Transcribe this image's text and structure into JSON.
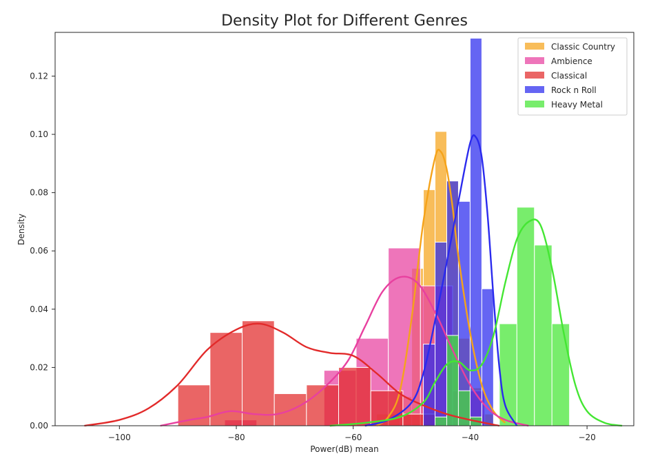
{
  "chart_data": {
    "type": "histogram",
    "title": "Density Plot for Different Genres",
    "xlabel": "Power(dB) mean",
    "ylabel": "Density",
    "xlim": [
      -111,
      -12
    ],
    "ylim": [
      0,
      0.135
    ],
    "xticks": [
      -100,
      -80,
      -60,
      -40,
      -20
    ],
    "xtick_labels": [
      "−100",
      "−80",
      "−60",
      "−40",
      "−20"
    ],
    "yticks": [
      0.0,
      0.02,
      0.04,
      0.06,
      0.08,
      0.1,
      0.12
    ],
    "ytick_labels": [
      "0.00",
      "0.02",
      "0.04",
      "0.06",
      "0.08",
      "0.10",
      "0.12"
    ],
    "grid": false,
    "legend_position": "top-right",
    "series": [
      {
        "name": "Classic Country",
        "color": "#f5a31a",
        "bins": [
          {
            "x0": -56,
            "x1": -54,
            "density": 0.004
          },
          {
            "x0": -54,
            "x1": -52,
            "density": 0.004
          },
          {
            "x0": -52,
            "x1": -50,
            "density": 0.01
          },
          {
            "x0": -50,
            "x1": -48,
            "density": 0.054
          },
          {
            "x0": -48,
            "x1": -46,
            "density": 0.081
          },
          {
            "x0": -46,
            "x1": -44,
            "density": 0.101
          },
          {
            "x0": -44,
            "x1": -42,
            "density": 0.084
          },
          {
            "x0": -42,
            "x1": -40,
            "density": 0.03
          },
          {
            "x0": -40,
            "x1": -38,
            "density": 0.013
          },
          {
            "x0": -38,
            "x1": -36,
            "density": 0.004
          }
        ],
        "kde": [
          [
            -56,
            0.0
          ],
          [
            -54,
            0.003
          ],
          [
            -52,
            0.012
          ],
          [
            -50,
            0.037
          ],
          [
            -48,
            0.07
          ],
          [
            -46,
            0.092
          ],
          [
            -45,
            0.094
          ],
          [
            -44,
            0.088
          ],
          [
            -43,
            0.075
          ],
          [
            -42,
            0.058
          ],
          [
            -40,
            0.032
          ],
          [
            -38,
            0.014
          ],
          [
            -36,
            0.005
          ],
          [
            -34,
            0.001
          ]
        ]
      },
      {
        "name": "Ambience",
        "color": "#e8409f",
        "bins": [
          {
            "x0": -82,
            "x1": -76.5,
            "density": 0.002
          },
          {
            "x0": -65,
            "x1": -59.5,
            "density": 0.019
          },
          {
            "x0": -59.5,
            "x1": -54,
            "density": 0.03
          },
          {
            "x0": -54,
            "x1": -48.5,
            "density": 0.061
          },
          {
            "x0": -48.5,
            "x1": -43,
            "density": 0.048
          },
          {
            "x0": -43,
            "x1": -37.5,
            "density": 0.012
          }
        ],
        "kde": [
          [
            -93,
            0.0
          ],
          [
            -88,
            0.002
          ],
          [
            -85,
            0.003
          ],
          [
            -81,
            0.005
          ],
          [
            -77,
            0.004
          ],
          [
            -73,
            0.004
          ],
          [
            -69,
            0.007
          ],
          [
            -65,
            0.013
          ],
          [
            -61,
            0.022
          ],
          [
            -58,
            0.034
          ],
          [
            -55,
            0.046
          ],
          [
            -52,
            0.051
          ],
          [
            -49,
            0.049
          ],
          [
            -46,
            0.039
          ],
          [
            -43,
            0.026
          ],
          [
            -40,
            0.014
          ],
          [
            -37,
            0.006
          ],
          [
            -34,
            0.002
          ],
          [
            -30,
            0.0
          ]
        ]
      },
      {
        "name": "Classical",
        "color": "#e22a2a",
        "bins": [
          {
            "x0": -90,
            "x1": -84.5,
            "density": 0.014
          },
          {
            "x0": -84.5,
            "x1": -79,
            "density": 0.032
          },
          {
            "x0": -79,
            "x1": -73.5,
            "density": 0.036
          },
          {
            "x0": -73.5,
            "x1": -68,
            "density": 0.011
          },
          {
            "x0": -68,
            "x1": -62.5,
            "density": 0.014
          },
          {
            "x0": -62.5,
            "x1": -57,
            "density": 0.02
          },
          {
            "x0": -57,
            "x1": -51.5,
            "density": 0.012
          },
          {
            "x0": -51.5,
            "x1": -46,
            "density": 0.004
          }
        ],
        "kde": [
          [
            -106,
            0.0
          ],
          [
            -100,
            0.002
          ],
          [
            -95,
            0.006
          ],
          [
            -90,
            0.014
          ],
          [
            -85,
            0.026
          ],
          [
            -80,
            0.033
          ],
          [
            -76,
            0.035
          ],
          [
            -72,
            0.032
          ],
          [
            -68,
            0.027
          ],
          [
            -64,
            0.025
          ],
          [
            -60,
            0.024
          ],
          [
            -56,
            0.018
          ],
          [
            -52,
            0.011
          ],
          [
            -48,
            0.007
          ],
          [
            -44,
            0.004
          ],
          [
            -40,
            0.002
          ],
          [
            -35,
            0.0
          ]
        ]
      },
      {
        "name": "Rock n Roll",
        "color": "#2a2aee",
        "bins": [
          {
            "x0": -48,
            "x1": -46,
            "density": 0.028
          },
          {
            "x0": -46,
            "x1": -44,
            "density": 0.063
          },
          {
            "x0": -44,
            "x1": -42,
            "density": 0.084
          },
          {
            "x0": -42,
            "x1": -40,
            "density": 0.077
          },
          {
            "x0": -40,
            "x1": -38,
            "density": 0.133
          },
          {
            "x0": -38,
            "x1": -36,
            "density": 0.047
          }
        ],
        "kde": [
          [
            -58,
            0.0
          ],
          [
            -54,
            0.002
          ],
          [
            -50,
            0.008
          ],
          [
            -48,
            0.018
          ],
          [
            -46,
            0.036
          ],
          [
            -44,
            0.056
          ],
          [
            -42,
            0.077
          ],
          [
            -40,
            0.097
          ],
          [
            -39,
            0.099
          ],
          [
            -38,
            0.092
          ],
          [
            -37,
            0.072
          ],
          [
            -36,
            0.044
          ],
          [
            -35,
            0.02
          ],
          [
            -34,
            0.007
          ],
          [
            -32,
            0.0
          ]
        ]
      },
      {
        "name": "Heavy Metal",
        "color": "#44e633",
        "bins": [
          {
            "x0": -46,
            "x1": -44,
            "density": 0.003
          },
          {
            "x0": -44,
            "x1": -42,
            "density": 0.031
          },
          {
            "x0": -42,
            "x1": -40,
            "density": 0.012
          },
          {
            "x0": -40,
            "x1": -38,
            "density": 0.003
          },
          {
            "x0": -35,
            "x1": -32,
            "density": 0.035
          },
          {
            "x0": -32,
            "x1": -29,
            "density": 0.075
          },
          {
            "x0": -29,
            "x1": -26,
            "density": 0.062
          },
          {
            "x0": -26,
            "x1": -23,
            "density": 0.035
          }
        ],
        "kde": [
          [
            -64,
            0.0
          ],
          [
            -58,
            0.001
          ],
          [
            -52,
            0.003
          ],
          [
            -48,
            0.008
          ],
          [
            -46,
            0.015
          ],
          [
            -44,
            0.021
          ],
          [
            -42,
            0.022
          ],
          [
            -40,
            0.019
          ],
          [
            -38,
            0.021
          ],
          [
            -36,
            0.031
          ],
          [
            -34,
            0.049
          ],
          [
            -32,
            0.064
          ],
          [
            -30,
            0.07
          ],
          [
            -28,
            0.069
          ],
          [
            -26,
            0.054
          ],
          [
            -24,
            0.032
          ],
          [
            -22,
            0.014
          ],
          [
            -20,
            0.005
          ],
          [
            -17,
            0.001
          ],
          [
            -14,
            0.0
          ]
        ]
      }
    ]
  }
}
